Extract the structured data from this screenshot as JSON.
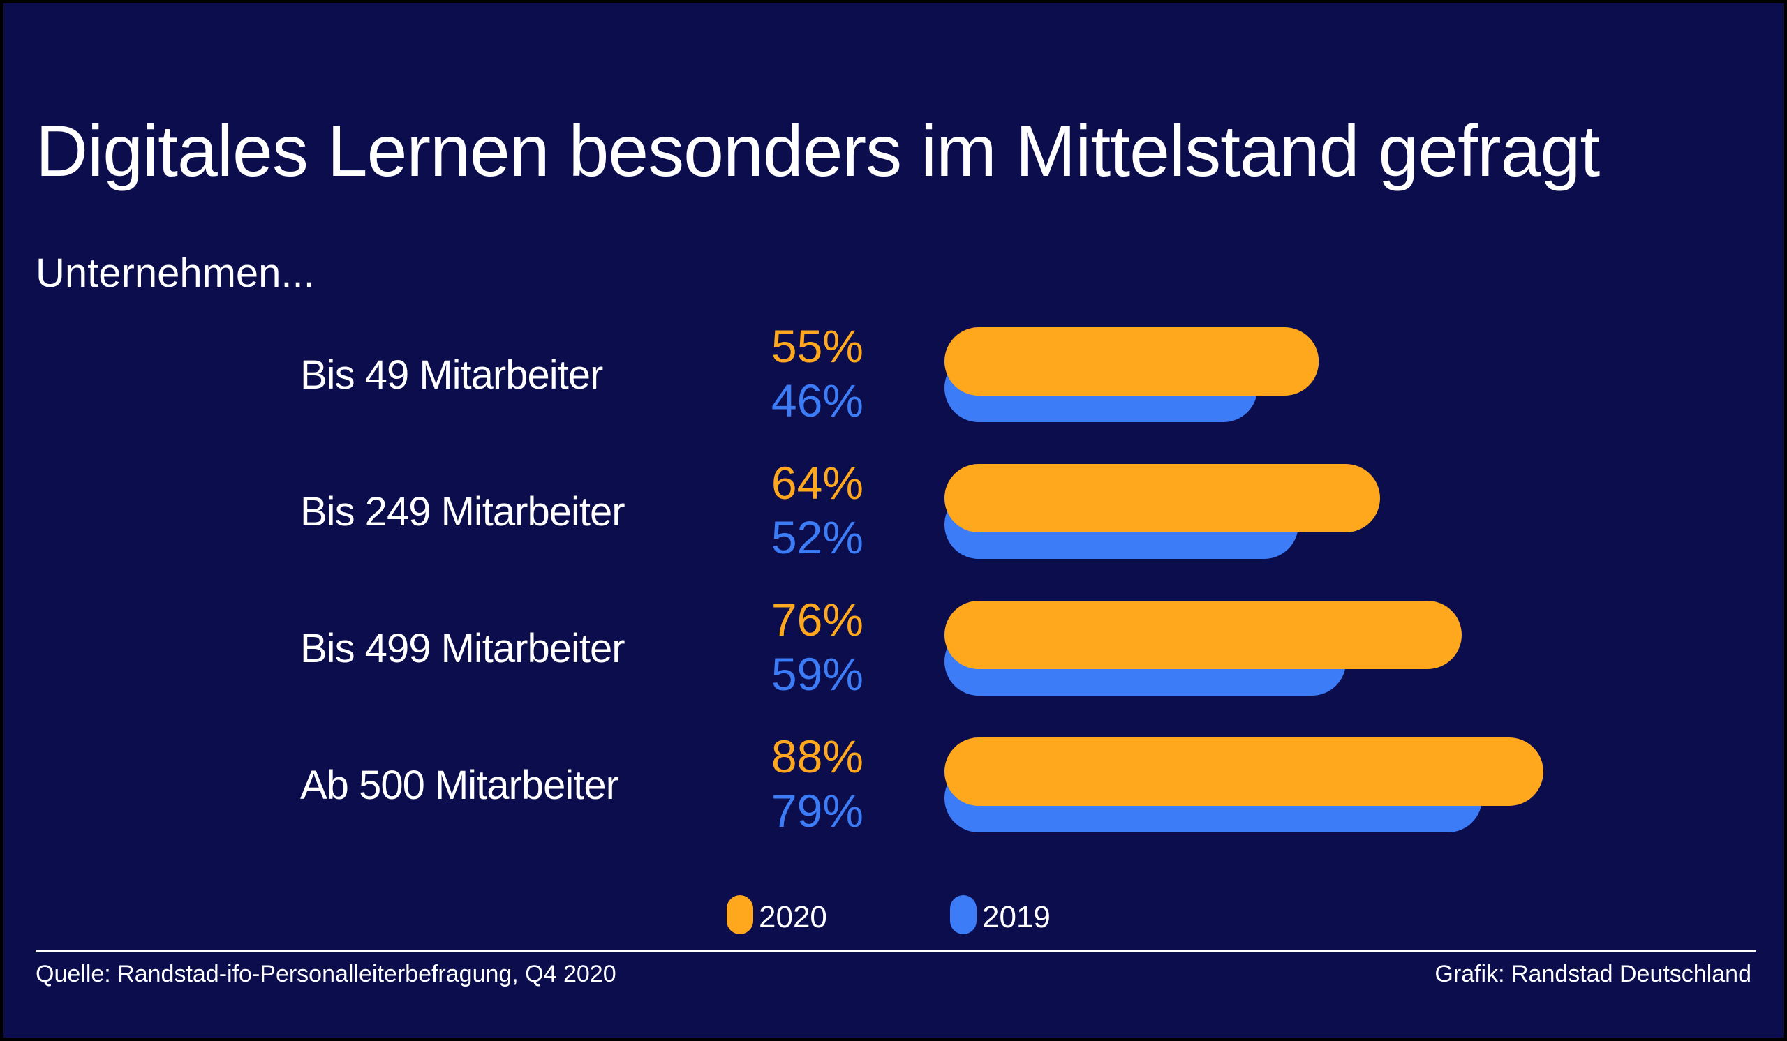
{
  "title": "Digitales Lernen besonders im Mittelstand gefragt",
  "subtitle": "Unternehmen...",
  "colors": {
    "background": "#0c0d4d",
    "series_2020": "#ffa81d",
    "series_2019": "#3c7df7",
    "text": "#ffffff"
  },
  "chart_data": {
    "type": "bar",
    "orientation": "horizontal",
    "categories": [
      "Bis 49 Mitarbeiter",
      "Bis 249 Mitarbeiter",
      "Bis 499 Mitarbeiter",
      "Ab 500 Mitarbeiter"
    ],
    "series": [
      {
        "name": "2020",
        "values": [
          55,
          64,
          76,
          88
        ],
        "labels": [
          "55%",
          "64%",
          "76%",
          "88%"
        ]
      },
      {
        "name": "2019",
        "values": [
          46,
          52,
          59,
          79
        ],
        "labels": [
          "46%",
          "52%",
          "59%",
          "79%"
        ]
      }
    ],
    "unit": "%",
    "xlim": [
      0,
      100
    ],
    "grid": false,
    "legend": {
      "placement": "bottom-center",
      "entries": [
        "2020",
        "2019"
      ]
    }
  },
  "footer": {
    "source": "Quelle: Randstad-ifo-Personalleiterbefragung, Q4 2020",
    "credit": "Grafik: Randstad Deutschland"
  }
}
